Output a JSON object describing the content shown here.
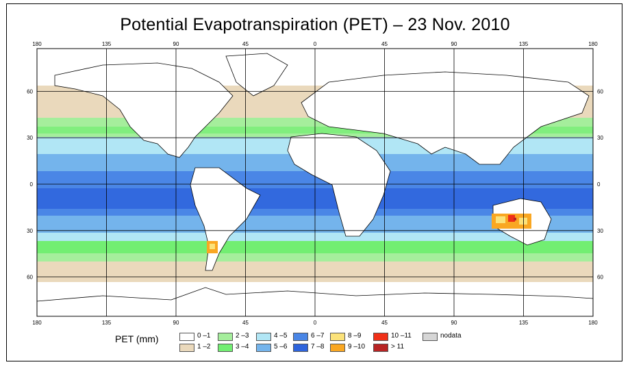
{
  "title": "Potential Evapotranspiration (PET) – 23 Nov. 2010",
  "legend_label": "PET (mm)",
  "legend": [
    {
      "label": "0 –1",
      "color": "#ffffff"
    },
    {
      "label": "1 –2",
      "color": "#ead9bc"
    },
    {
      "label": "2 –3",
      "color": "#a5ee9c"
    },
    {
      "label": "3 –4",
      "color": "#72ee72"
    },
    {
      "label": "4 –5",
      "color": "#b1e6f5"
    },
    {
      "label": "5 –6",
      "color": "#74b4ec"
    },
    {
      "label": "6 –7",
      "color": "#4a86e6"
    },
    {
      "label": "7 –8",
      "color": "#2e64dc"
    },
    {
      "label": "8 –9",
      "color": "#fbe27a"
    },
    {
      "label": "9 –10",
      "color": "#f9a722"
    },
    {
      "label": "10 –11",
      "color": "#f03018"
    },
    {
      "label": "> 11",
      "color": "#b82424"
    },
    {
      "label": "nodata",
      "color": "#d6d6d6"
    }
  ],
  "lon_ticks": [
    "180",
    "135",
    "90",
    "45",
    "0",
    "45",
    "90",
    "135",
    "180"
  ],
  "lat_ticks_top": [
    "60",
    "30",
    "0",
    "30",
    "60"
  ],
  "lat_values": [
    60,
    30,
    0,
    -30,
    -60
  ],
  "lon_values": [
    -180,
    -135,
    -90,
    -45,
    0,
    45,
    90,
    135,
    180
  ]
}
